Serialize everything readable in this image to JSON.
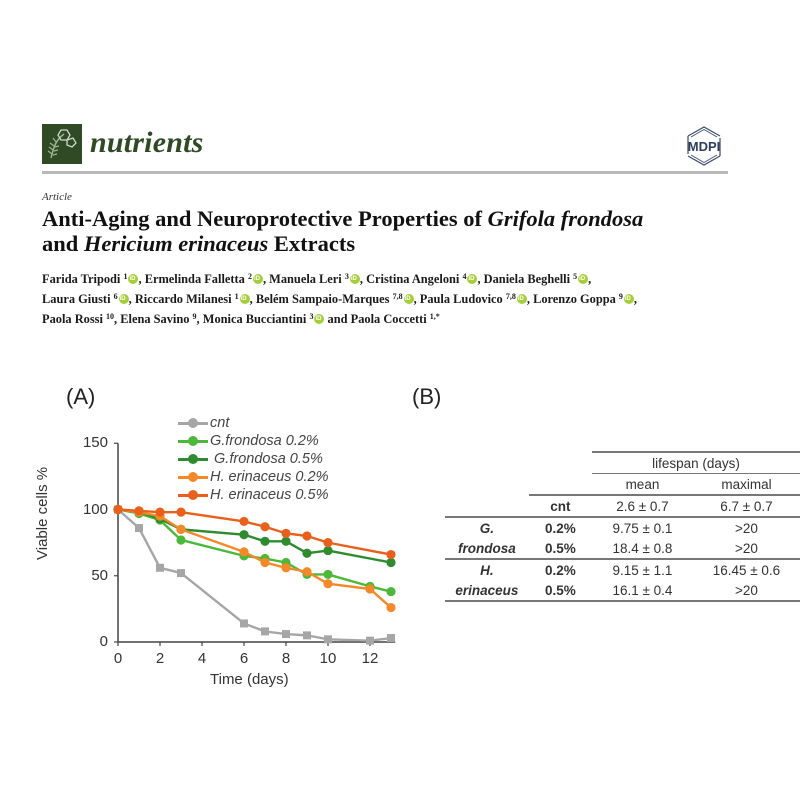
{
  "header": {
    "journal_name": "nutrients",
    "publisher": "MDPI",
    "logo_icon": "nutrients-journal-logo-icon",
    "brand_color": "#2f4a24"
  },
  "article": {
    "type": "Article",
    "title_parts": {
      "p1": "Anti-Aging and Neuroprotective Properties of ",
      "p2": "Grifola frondosa",
      "p3": "and ",
      "p4": "Hericium erinaceus",
      "p5": " Extracts"
    },
    "authors": [
      {
        "name": "Farida Tripodi",
        "aff": "1",
        "orcid": true
      },
      {
        "name": "Ermelinda Falletta",
        "aff": "2",
        "orcid": true
      },
      {
        "name": "Manuela Leri",
        "aff": "3",
        "orcid": true
      },
      {
        "name": "Cristina Angeloni",
        "aff": "4",
        "orcid": true
      },
      {
        "name": "Daniela Beghelli",
        "aff": "5",
        "orcid": true
      },
      {
        "name": "Laura Giusti",
        "aff": "6",
        "orcid": true
      },
      {
        "name": "Riccardo Milanesi",
        "aff": "1",
        "orcid": true
      },
      {
        "name": "Belém Sampaio-Marques",
        "aff": "7,8",
        "orcid": true
      },
      {
        "name": "Paula Ludovico",
        "aff": "7,8",
        "orcid": true
      },
      {
        "name": "Lorenzo Goppa",
        "aff": "9",
        "orcid": true
      },
      {
        "name": "Paola Rossi",
        "aff": "10",
        "orcid": false
      },
      {
        "name": "Elena Savino",
        "aff": "9",
        "orcid": false
      },
      {
        "name": "Monica Bucciantini",
        "aff": "3",
        "orcid": true
      },
      {
        "name": "Paola Coccetti",
        "aff": "1,*",
        "orcid": false
      }
    ],
    "and_word": "and"
  },
  "figure": {
    "panel_a_label": "(A)",
    "panel_b_label": "(B)"
  },
  "chart_data": [
    {
      "type": "line",
      "title": "(A)",
      "xlabel": "Time (days)",
      "ylabel": "Viable cells %",
      "xlim": [
        0,
        13
      ],
      "ylim": [
        0,
        150
      ],
      "xticks": [
        "0",
        "2",
        "4",
        "6",
        "8",
        "10",
        "12"
      ],
      "yticks": [
        "0",
        "50",
        "100",
        "150"
      ],
      "grid": false,
      "legend_position": "top-center",
      "series": [
        {
          "name": "cnt",
          "color": "#a6a6a6",
          "marker": "square",
          "x": [
            0,
            1,
            2,
            3,
            6,
            7,
            8,
            9,
            10,
            12,
            13
          ],
          "values": [
            100,
            86,
            56,
            52,
            14,
            8,
            6,
            5,
            2,
            1,
            3
          ]
        },
        {
          "name": "G.frondosa 0.2%",
          "color": "#4cb839",
          "marker": "circle",
          "x": [
            0,
            1,
            2,
            3,
            6,
            7,
            8,
            9,
            10,
            12,
            13
          ],
          "values": [
            100,
            97,
            92,
            77,
            65,
            63,
            60,
            51,
            51,
            42,
            38
          ]
        },
        {
          "name": " G.frondosa 0.5%",
          "color": "#2e8b2e",
          "marker": "circle",
          "x": [
            0,
            1,
            2,
            3,
            6,
            7,
            8,
            9,
            10,
            13
          ],
          "values": [
            100,
            98,
            93,
            85,
            81,
            76,
            76,
            67,
            69,
            60
          ]
        },
        {
          "name": "H. erinaceus 0.2%",
          "color": "#f5892a",
          "marker": "circle",
          "x": [
            0,
            1,
            2,
            3,
            6,
            7,
            8,
            9,
            10,
            12,
            13
          ],
          "values": [
            100,
            98,
            95,
            85,
            68,
            60,
            56,
            53,
            44,
            40,
            26
          ]
        },
        {
          "name": "H. erinaceus 0.5%",
          "color": "#e8601c",
          "marker": "circle",
          "x": [
            0,
            1,
            2,
            3,
            6,
            7,
            8,
            9,
            10,
            13
          ],
          "values": [
            100,
            99,
            98,
            98,
            91,
            87,
            82,
            80,
            75,
            66
          ]
        }
      ]
    },
    {
      "type": "table",
      "title": "(B)",
      "header_group": "lifespan (days)",
      "columns": [
        "mean",
        "maximal"
      ],
      "rows": [
        {
          "group": "",
          "sub": "cnt",
          "mean": "2.6 ± 0.7",
          "maximal": "6.7 ± 0.7"
        },
        {
          "group": "G.",
          "sub": "0.2%",
          "mean": "9.75 ± 0.1",
          "maximal": ">20"
        },
        {
          "group": "frondosa",
          "sub": "0.5%",
          "mean": "18.4 ± 0.8",
          "maximal": ">20"
        },
        {
          "group": "H.",
          "sub": "0.2%",
          "mean": "9.15 ± 1.1",
          "maximal": "16.45 ± 0.6"
        },
        {
          "group": "erinaceus",
          "sub": "0.5%",
          "mean": "16.1 ± 0.4",
          "maximal": ">20"
        }
      ]
    }
  ]
}
